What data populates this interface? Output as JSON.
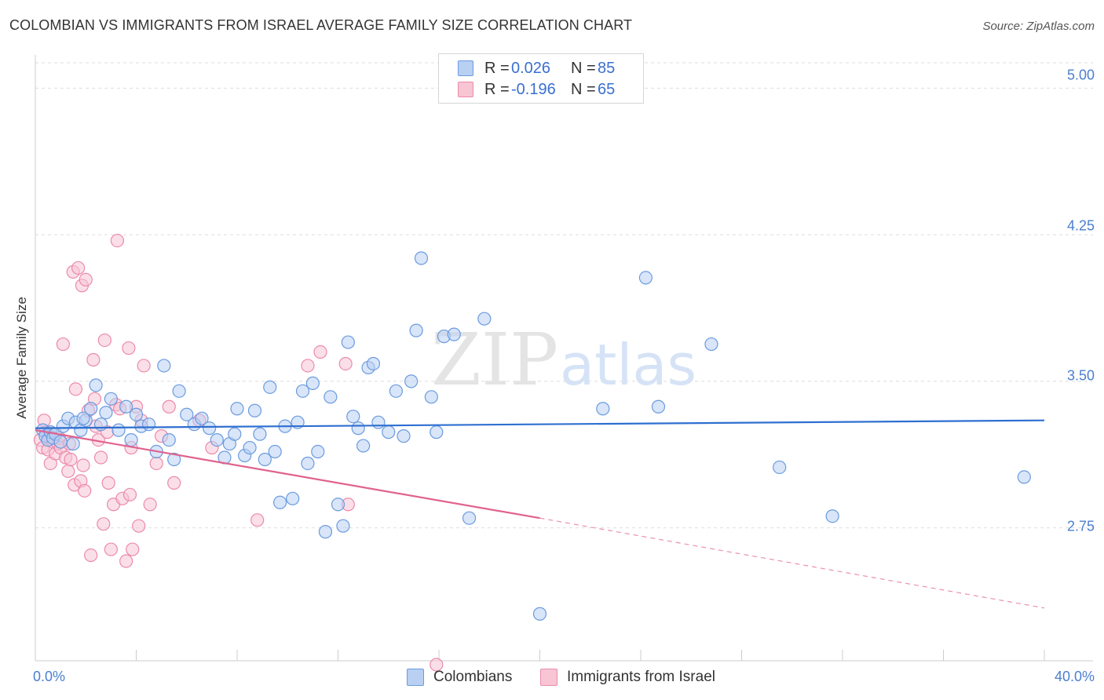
{
  "title": "COLOMBIAN VS IMMIGRANTS FROM ISRAEL AVERAGE FAMILY SIZE CORRELATION CHART",
  "source": "Source: ZipAtlas.com",
  "watermark": {
    "zip": "ZIP",
    "atlas": "atlas"
  },
  "legend": {
    "series1": {
      "r_label": "R =",
      "r_value": "0.026",
      "n_label": "N =",
      "n_value": "85"
    },
    "series2": {
      "r_label": "R =",
      "r_value": "-0.196",
      "n_label": "N =",
      "n_value": "65"
    }
  },
  "bottom_legend": {
    "series1": "Colombians",
    "series2": "Immigrants from Israel"
  },
  "colors": {
    "blue": "#6a9be0",
    "blue_fill": "#b9d0f3",
    "blue_line": "#2e6fd0",
    "pink": "#ec8aaa",
    "pink_fill": "#f8c5d5",
    "pink_line": "#e0628e",
    "grid": "#dddddd",
    "axis_text": "#4a7fd0"
  },
  "chart_data": {
    "type": "scatter",
    "title": "COLOMBIAN VS IMMIGRANTS FROM ISRAEL AVERAGE FAMILY SIZE CORRELATION CHART",
    "xlabel": "",
    "ylabel": "Average Family Size",
    "xlim": [
      0,
      40
    ],
    "ylim": [
      2.07,
      5.17
    ],
    "x_tick_labels": [
      "0.0%",
      "40.0%"
    ],
    "y_ticks": [
      2.75,
      3.5,
      4.25,
      5.0
    ],
    "y_tick_labels": [
      "2.75",
      "3.50",
      "4.25",
      "5.00"
    ],
    "series": [
      {
        "name": "Colombians",
        "trend": {
          "x0": 0,
          "y0": 3.26,
          "x1": 40,
          "y1": 3.3
        },
        "points": [
          [
            0.3,
            3.25
          ],
          [
            0.4,
            3.22
          ],
          [
            0.5,
            3.2
          ],
          [
            0.6,
            3.24
          ],
          [
            0.7,
            3.21
          ],
          [
            0.8,
            3.23
          ],
          [
            1.0,
            3.19
          ],
          [
            1.1,
            3.27
          ],
          [
            1.3,
            3.31
          ],
          [
            1.5,
            3.18
          ],
          [
            1.6,
            3.29
          ],
          [
            1.8,
            3.25
          ],
          [
            2.0,
            3.3
          ],
          [
            2.2,
            3.36
          ],
          [
            2.4,
            3.48
          ],
          [
            2.6,
            3.28
          ],
          [
            2.8,
            3.34
          ],
          [
            3.0,
            3.41
          ],
          [
            3.3,
            3.25
          ],
          [
            3.6,
            3.37
          ],
          [
            3.8,
            3.2
          ],
          [
            4.0,
            3.33
          ],
          [
            4.2,
            3.27
          ],
          [
            4.5,
            3.28
          ],
          [
            4.8,
            3.14
          ],
          [
            5.1,
            3.58
          ],
          [
            5.3,
            3.2
          ],
          [
            5.5,
            3.1
          ],
          [
            5.7,
            3.45
          ],
          [
            6.0,
            3.33
          ],
          [
            6.3,
            3.28
          ],
          [
            6.6,
            3.31
          ],
          [
            6.9,
            3.26
          ],
          [
            7.2,
            3.2
          ],
          [
            7.5,
            3.11
          ],
          [
            7.7,
            3.18
          ],
          [
            7.9,
            3.23
          ],
          [
            8.0,
            3.36
          ],
          [
            8.3,
            3.12
          ],
          [
            8.5,
            3.16
          ],
          [
            8.7,
            3.35
          ],
          [
            8.9,
            3.23
          ],
          [
            9.1,
            3.1
          ],
          [
            9.3,
            3.47
          ],
          [
            9.5,
            3.14
          ],
          [
            9.7,
            2.88
          ],
          [
            9.9,
            3.27
          ],
          [
            10.2,
            2.9
          ],
          [
            10.4,
            3.29
          ],
          [
            10.6,
            3.45
          ],
          [
            10.8,
            3.08
          ],
          [
            11.0,
            3.49
          ],
          [
            11.2,
            3.14
          ],
          [
            11.5,
            2.73
          ],
          [
            11.7,
            3.42
          ],
          [
            12.0,
            2.87
          ],
          [
            12.2,
            2.76
          ],
          [
            12.4,
            3.7
          ],
          [
            12.6,
            3.32
          ],
          [
            12.8,
            3.26
          ],
          [
            13.0,
            3.17
          ],
          [
            13.2,
            3.57
          ],
          [
            13.4,
            3.59
          ],
          [
            13.6,
            3.29
          ],
          [
            14.0,
            3.24
          ],
          [
            14.3,
            3.45
          ],
          [
            14.6,
            3.22
          ],
          [
            14.9,
            3.5
          ],
          [
            15.1,
            3.76
          ],
          [
            15.3,
            4.13
          ],
          [
            15.7,
            3.42
          ],
          [
            15.9,
            3.24
          ],
          [
            16.2,
            3.73
          ],
          [
            16.6,
            3.74
          ],
          [
            17.2,
            2.8
          ],
          [
            17.8,
            3.82
          ],
          [
            20.0,
            2.31
          ],
          [
            22.5,
            3.36
          ],
          [
            24.2,
            4.03
          ],
          [
            24.7,
            3.37
          ],
          [
            26.8,
            3.69
          ],
          [
            29.5,
            3.06
          ],
          [
            31.6,
            2.81
          ],
          [
            39.2,
            3.01
          ],
          [
            1.9,
            3.31
          ]
        ]
      },
      {
        "name": "Immigrants from Israel",
        "trend": {
          "x0": 0,
          "y0": 3.25,
          "x1": 20,
          "y1": 2.8,
          "dash_to": {
            "x": 40,
            "y": 2.34
          }
        },
        "points": [
          [
            0.2,
            3.2
          ],
          [
            0.3,
            3.16
          ],
          [
            0.35,
            3.3
          ],
          [
            0.4,
            3.24
          ],
          [
            0.5,
            3.15
          ],
          [
            0.55,
            3.22
          ],
          [
            0.6,
            3.08
          ],
          [
            0.7,
            3.19
          ],
          [
            0.8,
            3.13
          ],
          [
            0.9,
            3.18
          ],
          [
            0.95,
            3.21
          ],
          [
            1.0,
            3.16
          ],
          [
            1.1,
            3.69
          ],
          [
            1.2,
            3.11
          ],
          [
            1.3,
            3.04
          ],
          [
            1.35,
            3.18
          ],
          [
            1.4,
            3.1
          ],
          [
            1.5,
            4.06
          ],
          [
            1.55,
            2.97
          ],
          [
            1.6,
            3.46
          ],
          [
            1.7,
            4.08
          ],
          [
            1.8,
            2.99
          ],
          [
            1.85,
            3.99
          ],
          [
            1.9,
            3.07
          ],
          [
            1.95,
            2.94
          ],
          [
            2.0,
            4.02
          ],
          [
            2.1,
            3.35
          ],
          [
            2.2,
            2.61
          ],
          [
            2.3,
            3.61
          ],
          [
            2.35,
            3.41
          ],
          [
            2.4,
            3.27
          ],
          [
            2.5,
            3.2
          ],
          [
            2.6,
            3.11
          ],
          [
            2.7,
            2.77
          ],
          [
            2.75,
            3.71
          ],
          [
            2.85,
            3.24
          ],
          [
            2.9,
            2.98
          ],
          [
            3.0,
            2.64
          ],
          [
            3.1,
            2.87
          ],
          [
            3.2,
            3.38
          ],
          [
            3.25,
            4.22
          ],
          [
            3.35,
            3.36
          ],
          [
            3.45,
            2.9
          ],
          [
            3.6,
            2.58
          ],
          [
            3.7,
            3.67
          ],
          [
            3.75,
            2.92
          ],
          [
            3.8,
            3.16
          ],
          [
            3.85,
            2.64
          ],
          [
            4.0,
            3.37
          ],
          [
            4.1,
            2.76
          ],
          [
            4.2,
            3.3
          ],
          [
            4.3,
            3.58
          ],
          [
            4.55,
            2.87
          ],
          [
            4.8,
            3.08
          ],
          [
            5.0,
            3.22
          ],
          [
            5.3,
            3.37
          ],
          [
            5.5,
            2.98
          ],
          [
            6.5,
            3.3
          ],
          [
            7.0,
            3.16
          ],
          [
            8.8,
            2.79
          ],
          [
            10.8,
            3.58
          ],
          [
            11.3,
            3.65
          ],
          [
            12.3,
            3.59
          ],
          [
            12.4,
            2.87
          ],
          [
            15.9,
            2.05
          ]
        ]
      }
    ]
  }
}
